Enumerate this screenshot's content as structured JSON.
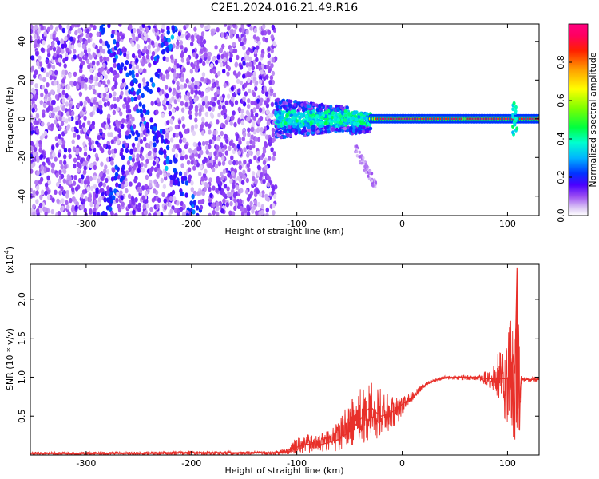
{
  "chart_data": [
    {
      "type": "heatmap",
      "title": "C2E1.2024.016.21.49.R16",
      "xlabel": "Height of straight line (km)",
      "ylabel": "Frequency (Hz)",
      "xlim": [
        -353,
        130
      ],
      "ylim": [
        -50,
        49
      ],
      "x_ticks": [
        -300,
        -200,
        -100,
        0,
        100
      ],
      "x_tick_labels": [
        "-300",
        "-200",
        "-100",
        "0",
        "100"
      ],
      "y_ticks": [
        -40,
        -20,
        0,
        20,
        40
      ],
      "y_tick_labels": [
        "-40",
        "-20",
        "0",
        "20",
        "40"
      ],
      "colorbar": {
        "label": "Normalized spectral amplitude",
        "range": [
          0,
          1
        ],
        "ticks": [
          0.0,
          0.2,
          0.4,
          0.6,
          0.8
        ],
        "tick_labels": [
          "0.0",
          "0.2",
          "0.4",
          "0.6",
          "0.8"
        ],
        "colormap": "hsv-like (white, lavender, violet, blue, cyan, green, yellow, orange, red, magenta)"
      },
      "regions": [
        {
          "x_range": [
            -353,
            -120
          ],
          "y_range": [
            -50,
            49
          ],
          "amplitude": "0.05-0.25 (noise, broadband)"
        },
        {
          "x_range": [
            -120,
            -30
          ],
          "y_range": [
            -12,
            12
          ],
          "amplitude": "0.2-0.5 (spread signal)"
        },
        {
          "x_range": [
            -30,
            60
          ],
          "y_range": [
            -3,
            3
          ],
          "amplitude": "0.7-0.95 (narrow signal near 0 Hz)"
        },
        {
          "x_range": [
            60,
            130
          ],
          "y_range": [
            -4,
            4
          ],
          "amplitude": "0.8-1.0 (narrow signal, disturbance near 105-110 km)"
        }
      ]
    },
    {
      "type": "line",
      "xlabel": "Height of straight line (km)",
      "ylabel": "SNR (10 * v/v)",
      "multiplier_label": "(x10",
      "multiplier_exponent": "4",
      "multiplier_suffix": ")",
      "xlim": [
        -353,
        130
      ],
      "ylim": [
        0,
        2.45
      ],
      "x_ticks": [
        -300,
        -200,
        -100,
        0,
        100
      ],
      "x_tick_labels": [
        "-300",
        "-200",
        "-100",
        "0",
        "100"
      ],
      "y_ticks": [
        0.5,
        1.0,
        1.5,
        2.0
      ],
      "y_tick_labels": [
        "0.5",
        "1.0",
        "1.5",
        "2.0"
      ],
      "line_color": "#e8302a",
      "series": [
        {
          "x": [
            -353,
            -300,
            -250,
            -200,
            -150,
            -120,
            -110,
            -100,
            -90,
            -80,
            -70,
            -60,
            -50,
            -40,
            -35,
            -30,
            -25,
            -20,
            -15,
            -10,
            -5,
            0,
            5,
            10,
            15,
            20,
            25,
            30,
            35,
            40,
            50,
            60,
            70,
            75,
            80,
            85,
            90,
            95,
            100,
            103,
            105,
            107,
            109,
            111,
            113,
            115,
            120,
            125,
            130
          ],
          "y": [
            0.02,
            0.02,
            0.02,
            0.03,
            0.03,
            0.03,
            0.05,
            0.1,
            0.14,
            0.12,
            0.16,
            0.2,
            0.3,
            0.45,
            0.55,
            0.62,
            0.55,
            0.5,
            0.52,
            0.55,
            0.6,
            0.65,
            0.7,
            0.75,
            0.8,
            0.88,
            0.92,
            0.96,
            0.97,
            0.99,
            1.0,
            1.0,
            1.0,
            0.99,
            0.98,
            0.98,
            0.97,
            0.98,
            0.98,
            1.0,
            1.3,
            1.05,
            2.4,
            0.6,
            1.0,
            0.97,
            0.97,
            0.97,
            0.97
          ],
          "envelope_low": [
            0.0,
            0.0,
            0.0,
            0.0,
            0.0,
            0.0,
            0.0,
            0.01,
            0.02,
            0.02,
            0.03,
            0.05,
            0.08,
            0.12,
            0.15,
            0.2,
            0.2,
            0.25,
            0.28,
            0.35,
            0.4,
            0.5,
            0.6,
            0.7,
            0.78,
            0.85,
            0.9,
            0.93,
            0.95,
            0.97,
            0.97,
            0.96,
            0.96,
            0.94,
            0.88,
            0.85,
            0.7,
            0.5,
            0.35,
            0.3,
            0.2,
            0.15,
            0.1,
            0.1,
            0.88,
            0.93,
            0.94,
            0.94,
            0.94
          ],
          "envelope_high": [
            0.04,
            0.04,
            0.04,
            0.05,
            0.05,
            0.05,
            0.1,
            0.22,
            0.27,
            0.25,
            0.32,
            0.45,
            0.7,
            0.85,
            0.93,
            0.98,
            0.9,
            0.88,
            0.82,
            0.75,
            0.74,
            0.76,
            0.8,
            0.82,
            0.86,
            0.92,
            0.95,
            0.98,
            1.0,
            1.02,
            1.02,
            1.03,
            1.03,
            1.05,
            1.1,
            1.15,
            1.3,
            1.4,
            1.55,
            1.75,
            1.85,
            1.6,
            2.45,
            1.5,
            1.05,
            1.0,
            1.0,
            1.0,
            1.0
          ]
        }
      ]
    }
  ]
}
